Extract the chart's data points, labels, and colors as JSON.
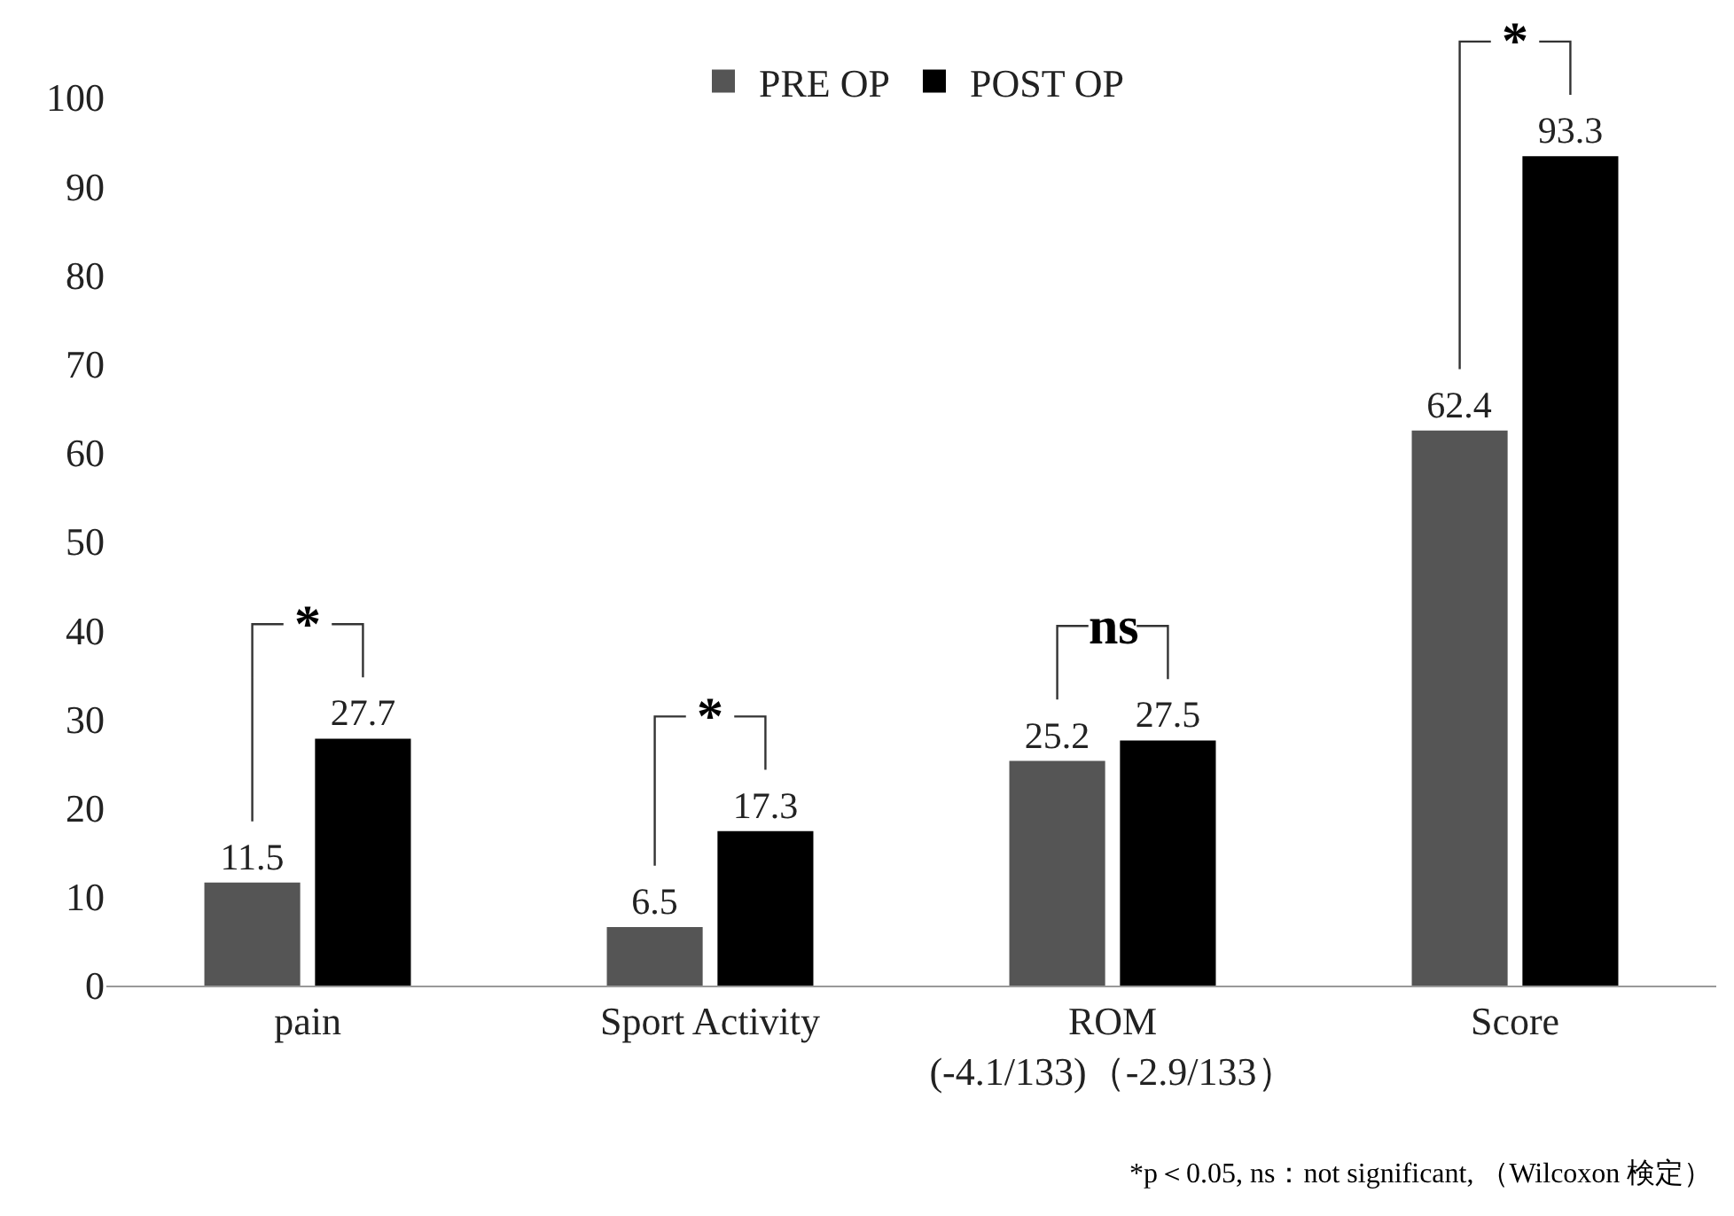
{
  "chart_data": {
    "type": "bar",
    "categories": [
      "pain",
      "Sport Activity",
      "ROM\n(-4.1/133)（-2.9/133）",
      "Score"
    ],
    "series": [
      {
        "name": "PRE OP",
        "color": "#555555",
        "values": [
          11.5,
          6.5,
          25.2,
          62.4
        ]
      },
      {
        "name": "POST OP",
        "color": "#000000",
        "values": [
          27.7,
          17.3,
          27.5,
          93.3
        ]
      }
    ],
    "ylim": [
      0,
      100
    ],
    "yticks": [
      0,
      10,
      20,
      30,
      40,
      50,
      60,
      70,
      80,
      90,
      100
    ],
    "data_labels": true,
    "legend": "top",
    "annotations": [
      "*",
      "*",
      "ns",
      "*",
      "*p＜0.05, ns：not significant, （Wilcoxon 検定）"
    ]
  }
}
